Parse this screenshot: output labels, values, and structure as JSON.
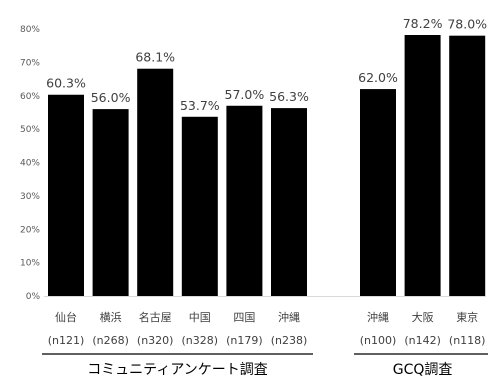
{
  "chart_data": {
    "type": "bar",
    "title": "",
    "xlabel": "",
    "ylabel": "",
    "ylim": [
      0,
      80
    ],
    "y_ticks": [
      "0%",
      "10%",
      "20%",
      "30%",
      "40%",
      "50%",
      "60%",
      "70%",
      "80%"
    ],
    "grid": false,
    "legend": "none",
    "bar_color": "#000000",
    "groups": [
      {
        "label": "コミュニティアンケート調査",
        "bars": [
          {
            "category": "仙台",
            "n": "(n121)",
            "value": 60.3,
            "value_label": "60.3%"
          },
          {
            "category": "横浜",
            "n": "(n268)",
            "value": 56.0,
            "value_label": "56.0%"
          },
          {
            "category": "名古屋",
            "n": "(n320)",
            "value": 68.1,
            "value_label": "68.1%"
          },
          {
            "category": "中国",
            "n": "(n328)",
            "value": 53.7,
            "value_label": "53.7%"
          },
          {
            "category": "四国",
            "n": "(n179)",
            "value": 57.0,
            "value_label": "57.0%"
          },
          {
            "category": "沖縄",
            "n": "(n238)",
            "value": 56.3,
            "value_label": "56.3%"
          }
        ]
      },
      {
        "label": "GCQ調査",
        "bars": [
          {
            "category": "沖縄",
            "n": "(n100)",
            "value": 62.0,
            "value_label": "62.0%"
          },
          {
            "category": "大阪",
            "n": "(n142)",
            "value": 78.2,
            "value_label": "78.2%"
          },
          {
            "category": "東京",
            "n": "(n118)",
            "value": 78.0,
            "value_label": "78.0%"
          }
        ]
      }
    ]
  }
}
